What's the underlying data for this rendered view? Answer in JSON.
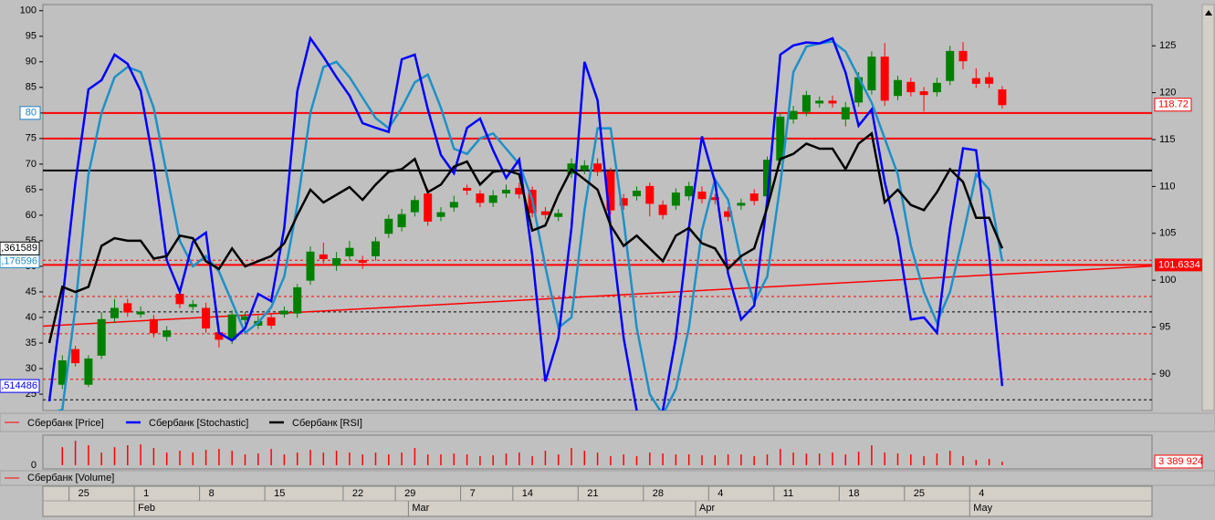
{
  "chart_data": [
    {
      "type": "candlestick",
      "categories": [
        null,
        null,
        "25",
        null,
        null,
        null,
        null,
        "1",
        null,
        null,
        null,
        null,
        "8",
        null,
        null,
        null,
        null,
        "15",
        null,
        null,
        null,
        null,
        null,
        "22",
        null,
        null,
        null,
        "29",
        null,
        null,
        null,
        null,
        "7",
        null,
        null,
        null,
        "14",
        null,
        null,
        null,
        null,
        "21",
        null,
        null,
        null,
        null,
        "28",
        null,
        null,
        null,
        null,
        "4",
        null,
        null,
        null,
        null,
        "11",
        null,
        null,
        null,
        null,
        "18",
        null,
        null,
        null,
        null,
        "25",
        null,
        null,
        null,
        null,
        "4",
        null,
        null
      ],
      "months": [
        null,
        null,
        null,
        null,
        null,
        null,
        null,
        "Feb",
        null,
        null,
        null,
        null,
        null,
        null,
        null,
        null,
        null,
        null,
        null,
        null,
        null,
        null,
        null,
        null,
        null,
        null,
        null,
        null,
        "Mar",
        null,
        null,
        null,
        null,
        null,
        null,
        null,
        null,
        null,
        null,
        null,
        null,
        null,
        null,
        null,
        null,
        null,
        null,
        null,
        null,
        null,
        "Apr",
        null,
        null,
        null,
        null,
        null,
        null,
        null,
        null,
        null,
        null,
        null,
        null,
        null,
        null,
        null,
        null,
        null,
        null,
        null,
        null,
        "May",
        null,
        null
      ],
      "ylim": [
        21.8,
        101.2
      ],
      "yticks": [
        25,
        30,
        35,
        40,
        45,
        50,
        55,
        60,
        65,
        70,
        75,
        80,
        85,
        90,
        95,
        100
      ],
      "y2lim": [
        86.1,
        129.4
      ],
      "y2ticks": [
        90,
        95,
        100,
        105,
        110,
        115,
        120,
        125
      ],
      "series": [
        {
          "name": "Сбербанк [Price]",
          "color": "#ff0000",
          "up_color": "#008000",
          "down_color": "#ff0000",
          "axis": "y2",
          "last_label_on": true,
          "open": [
            null,
            88.9,
            92.6,
            88.9,
            92.0,
            96.0,
            97.5,
            96.4,
            95.8,
            94.0,
            98.5,
            97.2,
            97.0,
            94.4,
            93.7,
            95.8,
            95.2,
            96.0,
            96.4,
            96.5,
            100.0,
            102.7,
            101.6,
            102.6,
            102.1,
            102.6,
            105.0,
            105.7,
            107.3,
            109.2,
            106.8,
            107.8,
            109.8,
            109.2,
            108.3,
            109.3,
            109.8,
            109.6,
            107.3,
            106.8,
            111.4,
            111.8,
            112.4,
            111.6,
            108.7,
            109.0,
            110.0,
            108.0,
            108.0,
            109.0,
            109.4,
            108.8,
            107.3,
            108.0,
            109.2,
            109.0,
            112.8,
            117.2,
            118.0,
            118.9,
            119.1,
            117.2,
            119.0,
            120.3,
            123.8,
            119.7,
            121.1,
            120.1,
            120.1,
            121.3,
            124.4,
            121.5,
            121.6,
            120.3
          ],
          "high": [
            null,
            92.0,
            93.0,
            92.0,
            96.6,
            98.0,
            98.0,
            97.2,
            96.3,
            95.1,
            99.0,
            97.9,
            97.6,
            95.0,
            96.8,
            96.6,
            96.2,
            96.5,
            97.2,
            99.6,
            103.6,
            104.0,
            103.0,
            104.2,
            102.6,
            104.6,
            107.0,
            107.6,
            109.0,
            109.8,
            107.8,
            109.0,
            110.2,
            109.6,
            109.6,
            110.2,
            110.4,
            110.0,
            107.8,
            107.6,
            113.0,
            112.8,
            113.0,
            112.0,
            109.2,
            110.0,
            110.4,
            108.5,
            109.8,
            110.5,
            110.0,
            109.2,
            107.8,
            108.7,
            109.7,
            113.2,
            117.9,
            118.6,
            120.2,
            119.6,
            119.7,
            119.0,
            122.2,
            124.4,
            125.3,
            121.8,
            121.6,
            120.6,
            121.6,
            125.0,
            125.4,
            122.6,
            122.2,
            120.7
          ],
          "low": [
            null,
            88.4,
            90.8,
            88.6,
            91.6,
            95.5,
            96.1,
            96.0,
            93.9,
            93.5,
            97.0,
            96.8,
            94.4,
            92.8,
            93.2,
            95.3,
            94.8,
            94.8,
            96.0,
            96.0,
            99.5,
            101.8,
            101.0,
            102.1,
            101.2,
            102.1,
            104.5,
            105.2,
            106.8,
            105.8,
            106.3,
            107.3,
            109.1,
            107.8,
            107.8,
            108.8,
            108.7,
            106.7,
            106.5,
            106.3,
            110.9,
            111.3,
            111.1,
            107.0,
            107.5,
            108.5,
            106.8,
            106.5,
            107.5,
            108.5,
            108.2,
            108.1,
            106.3,
            107.5,
            108.0,
            108.5,
            112.3,
            116.7,
            117.5,
            118.4,
            118.4,
            116.4,
            118.5,
            119.8,
            118.6,
            119.2,
            119.6,
            118.0,
            119.6,
            120.8,
            122.5,
            120.5,
            120.5,
            118.3
          ],
          "close": [
            null,
            91.4,
            91.2,
            91.6,
            95.8,
            97.0,
            96.6,
            96.6,
            94.4,
            94.6,
            97.5,
            97.4,
            94.9,
            93.7,
            96.3,
            96.1,
            95.6,
            95.2,
            96.7,
            99.2,
            103.0,
            102.3,
            102.3,
            103.4,
            101.9,
            104.1,
            106.5,
            107.0,
            108.5,
            106.3,
            107.2,
            108.3,
            109.6,
            108.3,
            109.0,
            109.6,
            109.2,
            107.2,
            107.0,
            107.1,
            112.4,
            112.2,
            111.6,
            107.5,
            108.0,
            109.5,
            108.2,
            107.0,
            109.3,
            110.0,
            108.7,
            108.6,
            106.8,
            108.2,
            108.5,
            112.8,
            117.4,
            118.0,
            119.7,
            119.1,
            118.9,
            118.4,
            121.6,
            123.8,
            119.2,
            121.3,
            120.1,
            119.8,
            121.0,
            124.4,
            123.4,
            121.0,
            121.0,
            118.72
          ]
        },
        {
          "name": "Сбербанк [Stochastic]",
          "color": "#0000ff",
          "last_label": ",514486",
          "values": [
            23.6,
            43.2,
            66.4,
            84.6,
            86.4,
            91.4,
            89.6,
            84.3,
            70,
            51.2,
            45,
            54.8,
            56.6,
            37,
            35.5,
            37.9,
            44.6,
            43.2,
            57.5,
            84.3,
            94.6,
            91,
            87,
            83.4,
            78,
            77.1,
            76.3,
            90.5,
            91.4,
            80.7,
            71.8,
            68.2,
            77.1,
            78.9,
            72.7,
            67.3,
            70.9,
            52.1,
            27.5,
            36,
            57.5,
            90,
            82.5,
            57.5,
            36,
            21.8,
            19,
            21.8,
            36,
            57.5,
            75.4,
            66.5,
            48.6,
            39.6,
            42.3,
            62.9,
            91.4,
            93.2,
            93.8,
            93.6,
            94.6,
            87.9,
            77.5,
            80.7,
            66.5,
            55.7,
            39.6,
            40,
            37,
            57.5,
            73.1,
            72.7,
            52.1,
            26.6
          ],
          "signal_color": "#1e90c8",
          "signal_last_label": ",176596",
          "signal_values": [
            21,
            22,
            42,
            68,
            80,
            87,
            89,
            88,
            81,
            68,
            55,
            50,
            52,
            49,
            43,
            37,
            39,
            42,
            48,
            62,
            80,
            89,
            90,
            87,
            83,
            79,
            77,
            81,
            86,
            87.5,
            81,
            73,
            72,
            75,
            76,
            73,
            70,
            63,
            50,
            38,
            40,
            61,
            77,
            77,
            59,
            38,
            25,
            21,
            26,
            38,
            57,
            67,
            63,
            51,
            43,
            48,
            66,
            88,
            93,
            93.6,
            94,
            92,
            87,
            82,
            75,
            68,
            54,
            45,
            39,
            45,
            56,
            68,
            65,
            51
          ]
        },
        {
          "name": "Сбербанк [RSI]",
          "color": "#000000",
          "last_label": ",361589",
          "values": [
            35,
            46,
            45,
            46,
            54,
            55.5,
            55,
            55,
            51.5,
            52,
            56,
            55.5,
            51,
            49.5,
            53.5,
            50,
            51,
            52,
            54.5,
            60,
            65,
            62.5,
            64,
            65.5,
            63,
            66,
            68.5,
            69,
            71,
            64.5,
            66,
            69.5,
            70.5,
            66,
            68.5,
            68.8,
            68,
            57,
            58,
            64,
            69,
            67,
            65,
            58,
            54,
            56,
            53.5,
            51,
            56,
            57.5,
            54.5,
            53.5,
            49.5,
            52,
            53.5,
            61.5,
            71,
            72,
            74,
            73,
            73,
            69,
            74,
            76,
            62.5,
            65,
            62,
            61,
            64.5,
            69,
            66.5,
            59.5,
            59.5,
            53.5
          ]
        }
      ],
      "hlines": [
        {
          "value": 80,
          "color": "#ff0000",
          "badge_color": "#2080c0"
        },
        {
          "value": 75,
          "color": "#ff0000"
        },
        {
          "value": 68.75,
          "color": "#000000"
        },
        {
          "value": 101.6334,
          "color": "#ff0000",
          "axis": "y2",
          "badge_color": "#ff0000"
        }
      ],
      "dashed": [
        {
          "value": 51.2,
          "color": "#ff0000"
        },
        {
          "value": 44.1,
          "color": "#ff0000"
        },
        {
          "value": 41.1,
          "color": "#000000"
        },
        {
          "value": 36.8,
          "color": "#ff0000"
        },
        {
          "value": 27.9,
          "color": "#ff0000"
        },
        {
          "value": 23.9,
          "color": "#000000"
        }
      ],
      "trend": {
        "axis": "y2",
        "start": 95.1,
        "end": 101.5,
        "color": "#ff0000"
      }
    },
    {
      "type": "bar",
      "ylim": [
        0,
        27000000
      ],
      "yticks": [
        0
      ],
      "series": [
        {
          "name": "Сбербанк [Volume]",
          "color": "#ff0000",
          "last_label": "3 389 924",
          "values": [
            null,
            16800000,
            22680000,
            18480000,
            11760000,
            16800000,
            18480000,
            19320000,
            15960000,
            11760000,
            13440000,
            11760000,
            14280000,
            15120000,
            13440000,
            10080000,
            10920000,
            15120000,
            10080000,
            11760000,
            14280000,
            11760000,
            13440000,
            11760000,
            10080000,
            11760000,
            10080000,
            11760000,
            15960000,
            10080000,
            10080000,
            10920000,
            10080000,
            8400000,
            9240000,
            10920000,
            11760000,
            8400000,
            13440000,
            10080000,
            15960000,
            13440000,
            11760000,
            8400000,
            10080000,
            8400000,
            11760000,
            10920000,
            10080000,
            10080000,
            9240000,
            9240000,
            10080000,
            10080000,
            8400000,
            10080000,
            15120000,
            11760000,
            10920000,
            10920000,
            11760000,
            10080000,
            12600000,
            18480000,
            11760000,
            10920000,
            10080000,
            8400000,
            10920000,
            13440000,
            8400000,
            5040000,
            5880000,
            3389924
          ]
        }
      ]
    }
  ]
}
